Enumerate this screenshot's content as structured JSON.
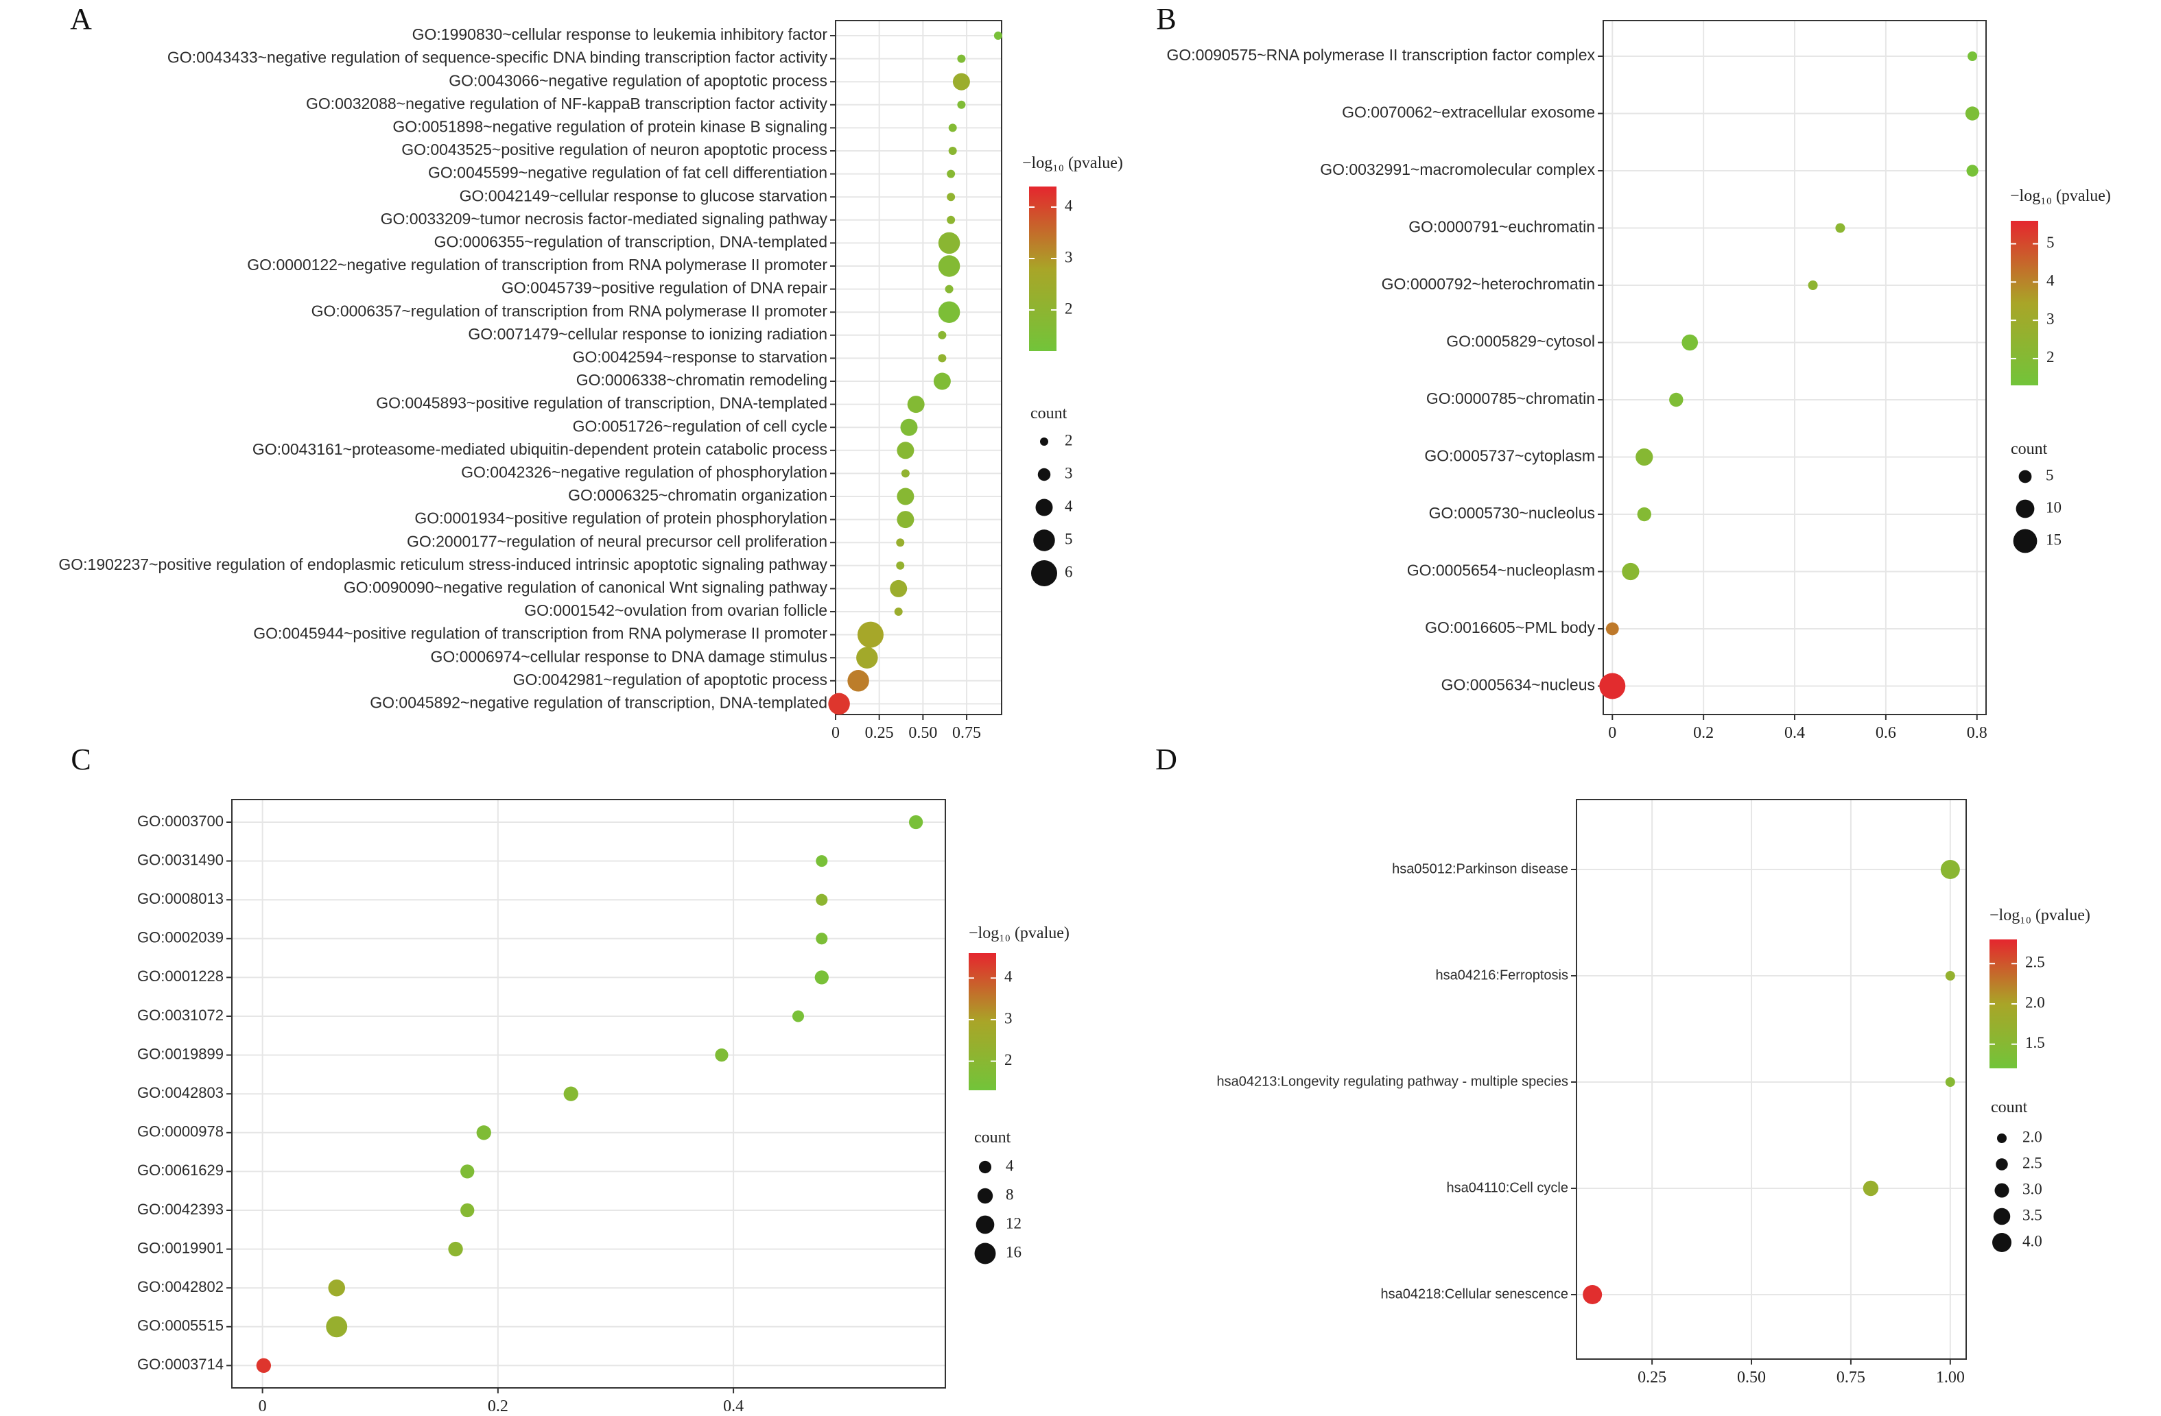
{
  "colors": {
    "low": "#72c43a",
    "mid": "#a9a528",
    "high": "#e5262e",
    "grid": "#e6e6e6",
    "axis": "#333333"
  },
  "chart_data": [
    {
      "panel": "A",
      "type": "scatter",
      "xlabel": "",
      "ylabel": "",
      "xlim": [
        0,
        0.95
      ],
      "x_ticks": [
        0,
        0.25,
        0.5,
        0.75
      ],
      "x_tick_labels": [
        "0",
        "0.25",
        "0.50",
        "0.75"
      ],
      "legend_color_title": "−log₁₀ (pvalue)",
      "legend_color_ticks": [
        2,
        3,
        4
      ],
      "color_range": [
        1.2,
        4.4
      ],
      "legend_size_title": "count",
      "legend_size_values": [
        2,
        3,
        4,
        5,
        6
      ],
      "size_range": [
        2,
        6
      ],
      "points": [
        {
          "term": "GO:1990830~cellular response to leukemia inhibitory factor",
          "x": 0.93,
          "count": 2,
          "pvalue": 1.4
        },
        {
          "term": "GO:0043433~negative regulation of sequence-specific DNA binding transcription factor activity",
          "x": 0.72,
          "count": 2,
          "pvalue": 1.6
        },
        {
          "term": "GO:0043066~negative regulation of apoptotic process",
          "x": 0.72,
          "count": 4,
          "pvalue": 2.4
        },
        {
          "term": "GO:0032088~negative regulation of NF-kappaB transcription factor activity",
          "x": 0.72,
          "count": 2,
          "pvalue": 1.6
        },
        {
          "term": "GO:0051898~negative regulation of protein kinase B signaling",
          "x": 0.67,
          "count": 2,
          "pvalue": 1.7
        },
        {
          "term": "GO:0043525~positive regulation of neuron apoptotic process",
          "x": 0.67,
          "count": 2,
          "pvalue": 1.9
        },
        {
          "term": "GO:0045599~negative regulation of fat cell differentiation",
          "x": 0.66,
          "count": 2,
          "pvalue": 1.8
        },
        {
          "term": "GO:0042149~cellular response to glucose starvation",
          "x": 0.66,
          "count": 2,
          "pvalue": 2.1
        },
        {
          "term": "GO:0033209~tumor necrosis factor-mediated signaling pathway",
          "x": 0.66,
          "count": 2,
          "pvalue": 2.0
        },
        {
          "term": "GO:0006355~regulation of transcription, DNA-templated",
          "x": 0.65,
          "count": 5,
          "pvalue": 1.9
        },
        {
          "term": "GO:0000122~negative regulation of transcription from RNA polymerase II promoter",
          "x": 0.65,
          "count": 5,
          "pvalue": 1.7
        },
        {
          "term": "GO:0045739~positive regulation of DNA repair",
          "x": 0.65,
          "count": 2,
          "pvalue": 1.8
        },
        {
          "term": "GO:0006357~regulation of transcription from RNA polymerase II promoter",
          "x": 0.65,
          "count": 5,
          "pvalue": 1.5
        },
        {
          "term": "GO:0071479~cellular response to ionizing radiation",
          "x": 0.61,
          "count": 2,
          "pvalue": 1.9
        },
        {
          "term": "GO:0042594~response to starvation",
          "x": 0.61,
          "count": 2,
          "pvalue": 2.1
        },
        {
          "term": "GO:0006338~chromatin remodeling",
          "x": 0.61,
          "count": 4,
          "pvalue": 1.6
        },
        {
          "term": "GO:0045893~positive regulation of transcription, DNA-templated",
          "x": 0.46,
          "count": 4,
          "pvalue": 1.7
        },
        {
          "term": "GO:0051726~regulation of cell cycle",
          "x": 0.42,
          "count": 4,
          "pvalue": 1.6
        },
        {
          "term": "GO:0043161~proteasome-mediated ubiquitin-dependent protein catabolic process",
          "x": 0.4,
          "count": 4,
          "pvalue": 1.8
        },
        {
          "term": "GO:0042326~negative regulation of phosphorylation",
          "x": 0.4,
          "count": 2,
          "pvalue": 2.1
        },
        {
          "term": "GO:0006325~chromatin organization",
          "x": 0.4,
          "count": 4,
          "pvalue": 1.8
        },
        {
          "term": "GO:0001934~positive regulation of protein phosphorylation",
          "x": 0.4,
          "count": 4,
          "pvalue": 1.9
        },
        {
          "term": "GO:2000177~regulation of neural precursor cell proliferation",
          "x": 0.37,
          "count": 2,
          "pvalue": 2.3
        },
        {
          "term": "GO:1902237~positive regulation of endoplasmic reticulum stress-induced intrinsic apoptotic signaling pathway",
          "x": 0.37,
          "count": 2,
          "pvalue": 2.2
        },
        {
          "term": "GO:0090090~negative regulation of canonical Wnt signaling pathway",
          "x": 0.36,
          "count": 4,
          "pvalue": 2.4
        },
        {
          "term": "GO:0001542~ovulation from ovarian follicle",
          "x": 0.36,
          "count": 2,
          "pvalue": 2.4
        },
        {
          "term": "GO:0045944~positive regulation of transcription from RNA polymerase II promoter",
          "x": 0.2,
          "count": 6,
          "pvalue": 2.7
        },
        {
          "term": "GO:0006974~cellular response to DNA damage stimulus",
          "x": 0.18,
          "count": 5,
          "pvalue": 2.6
        },
        {
          "term": "GO:0042981~regulation of apoptotic process",
          "x": 0.13,
          "count": 5,
          "pvalue": 3.3
        },
        {
          "term": "GO:0045892~negative regulation of transcription, DNA-templated",
          "x": 0.02,
          "count": 5,
          "pvalue": 4.2
        }
      ]
    },
    {
      "panel": "B",
      "type": "scatter",
      "xlabel": "",
      "ylabel": "",
      "xlim": [
        -0.02,
        0.82
      ],
      "x_ticks": [
        0,
        0.2,
        0.4,
        0.6,
        0.8
      ],
      "x_tick_labels": [
        "0",
        "0.2",
        "0.4",
        "0.6",
        "0.8"
      ],
      "legend_color_title": "−log₁₀ (pvalue)",
      "legend_color_ticks": [
        2,
        3,
        4,
        5
      ],
      "color_range": [
        1.3,
        5.6
      ],
      "legend_size_title": "count",
      "legend_size_values": [
        5,
        10,
        15
      ],
      "size_range": [
        2,
        17
      ],
      "points": [
        {
          "term": "GO:0090575~RNA polymerase II transcription factor complex",
          "x": 0.79,
          "count": 2,
          "pvalue": 1.5
        },
        {
          "term": "GO:0070062~extracellular exosome",
          "x": 0.79,
          "count": 6,
          "pvalue": 1.7
        },
        {
          "term": "GO:0032991~macromolecular complex",
          "x": 0.79,
          "count": 4,
          "pvalue": 1.5
        },
        {
          "term": "GO:0000791~euchromatin",
          "x": 0.5,
          "count": 2,
          "pvalue": 2.3
        },
        {
          "term": "GO:0000792~heterochromatin",
          "x": 0.44,
          "count": 2,
          "pvalue": 2.4
        },
        {
          "term": "GO:0005829~cytosol",
          "x": 0.17,
          "count": 8,
          "pvalue": 1.6
        },
        {
          "term": "GO:0000785~chromatin",
          "x": 0.14,
          "count": 6,
          "pvalue": 1.8
        },
        {
          "term": "GO:0005737~cytoplasm",
          "x": 0.07,
          "count": 9,
          "pvalue": 2.1
        },
        {
          "term": "GO:0005730~nucleolus",
          "x": 0.07,
          "count": 6,
          "pvalue": 2.0
        },
        {
          "term": "GO:0005654~nucleoplasm",
          "x": 0.04,
          "count": 9,
          "pvalue": 2.2
        },
        {
          "term": "GO:0016605~PML body",
          "x": 0.0,
          "count": 5,
          "pvalue": 4.2
        },
        {
          "term": "GO:0005634~nucleus",
          "x": 0.0,
          "count": 17,
          "pvalue": 5.5
        }
      ]
    },
    {
      "panel": "C",
      "type": "scatter",
      "xlabel": "",
      "ylabel": "",
      "xlim": [
        -0.026,
        0.58
      ],
      "x_ticks": [
        0,
        0.2,
        0.4
      ],
      "x_tick_labels": [
        "0",
        "0.2",
        "0.4"
      ],
      "legend_color_title": "−log₁₀ (pvalue)",
      "legend_color_ticks": [
        2,
        3,
        4
      ],
      "color_range": [
        1.3,
        4.6
      ],
      "legend_size_title": "count",
      "legend_size_values": [
        4,
        8,
        12,
        16
      ],
      "size_range": [
        2,
        17
      ],
      "points": [
        {
          "term": "GO:0003700",
          "x": 0.555,
          "count": 6,
          "pvalue": 1.5
        },
        {
          "term": "GO:0031490",
          "x": 0.475,
          "count": 3,
          "pvalue": 1.5
        },
        {
          "term": "GO:0008013",
          "x": 0.475,
          "count": 3,
          "pvalue": 2.1
        },
        {
          "term": "GO:0002039",
          "x": 0.475,
          "count": 3,
          "pvalue": 1.6
        },
        {
          "term": "GO:0001228",
          "x": 0.475,
          "count": 6,
          "pvalue": 1.5
        },
        {
          "term": "GO:0031072",
          "x": 0.455,
          "count": 3,
          "pvalue": 1.5
        },
        {
          "term": "GO:0019899",
          "x": 0.39,
          "count": 5,
          "pvalue": 1.7
        },
        {
          "term": "GO:0042803",
          "x": 0.262,
          "count": 7,
          "pvalue": 1.9
        },
        {
          "term": "GO:0000978",
          "x": 0.188,
          "count": 7,
          "pvalue": 1.7
        },
        {
          "term": "GO:0061629",
          "x": 0.174,
          "count": 6,
          "pvalue": 1.7
        },
        {
          "term": "GO:0042393",
          "x": 0.174,
          "count": 6,
          "pvalue": 1.9
        },
        {
          "term": "GO:0019901",
          "x": 0.164,
          "count": 7,
          "pvalue": 2.1
        },
        {
          "term": "GO:0042802",
          "x": 0.063,
          "count": 10,
          "pvalue": 2.6
        },
        {
          "term": "GO:0005515",
          "x": 0.063,
          "count": 16,
          "pvalue": 2.4
        },
        {
          "term": "GO:0003714",
          "x": 0.001,
          "count": 7,
          "pvalue": 4.4
        }
      ]
    },
    {
      "panel": "D",
      "type": "scatter",
      "xlabel": "",
      "ylabel": "",
      "xlim": [
        0.06,
        1.04
      ],
      "x_ticks": [
        0.25,
        0.5,
        0.75,
        1.0
      ],
      "x_tick_labels": [
        "0.25",
        "0.50",
        "0.75",
        "1.00"
      ],
      "legend_color_title": "−log₁₀ (pvalue)",
      "legend_color_ticks": [
        1.5,
        2.0,
        2.5
      ],
      "color_range": [
        1.2,
        2.8
      ],
      "legend_size_title": "count",
      "legend_size_values": [
        2.0,
        2.5,
        3.0,
        3.5,
        4.0
      ],
      "size_range": [
        2,
        4
      ],
      "points": [
        {
          "term": "hsa05012:Parkinson disease",
          "x": 1.0,
          "count": 4,
          "pvalue": 1.55
        },
        {
          "term": "hsa04216:Ferroptosis",
          "x": 1.0,
          "count": 2,
          "pvalue": 1.7
        },
        {
          "term": "hsa04213:Longevity regulating pathway - multiple species",
          "x": 1.0,
          "count": 2,
          "pvalue": 1.5
        },
        {
          "term": "hsa04110:Cell cycle",
          "x": 0.8,
          "count": 3.2,
          "pvalue": 1.75
        },
        {
          "term": "hsa04218:Cellular senescence",
          "x": 0.1,
          "count": 4,
          "pvalue": 2.75
        }
      ]
    }
  ]
}
